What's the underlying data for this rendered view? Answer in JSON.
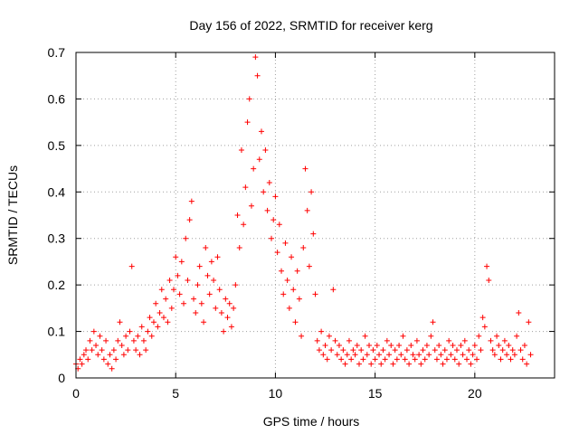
{
  "chart_data": {
    "type": "scatter",
    "title": "Day 156 of 2022, SRMTID for receiver kerg",
    "xlabel": "GPS time / hours",
    "ylabel": "SRMTID / TECUs",
    "xlim": [
      0,
      24
    ],
    "ylim": [
      0,
      0.7
    ],
    "xticks": [
      0,
      5,
      10,
      15,
      20
    ],
    "yticks": [
      0,
      0.1,
      0.2,
      0.3,
      0.4,
      0.5,
      0.6,
      0.7
    ],
    "xtick_labels": [
      "0",
      "5",
      "10",
      "15",
      "20"
    ],
    "ytick_labels": [
      "0",
      "0.1",
      "0.2",
      "0.3",
      "0.4",
      "0.5",
      "0.6",
      "0.7"
    ],
    "grid": true,
    "marker": "+",
    "color": "#ff0000",
    "series": [
      {
        "name": "SRMTID",
        "points": [
          [
            0.0,
            0.03
          ],
          [
            0.1,
            0.02
          ],
          [
            0.2,
            0.04
          ],
          [
            0.3,
            0.03
          ],
          [
            0.4,
            0.05
          ],
          [
            0.5,
            0.06
          ],
          [
            0.6,
            0.04
          ],
          [
            0.7,
            0.08
          ],
          [
            0.8,
            0.06
          ],
          [
            0.9,
            0.1
          ],
          [
            1.0,
            0.07
          ],
          [
            1.1,
            0.05
          ],
          [
            1.2,
            0.09
          ],
          [
            1.3,
            0.06
          ],
          [
            1.4,
            0.04
          ],
          [
            1.5,
            0.08
          ],
          [
            1.6,
            0.03
          ],
          [
            1.7,
            0.05
          ],
          [
            1.8,
            0.02
          ],
          [
            1.9,
            0.06
          ],
          [
            2.0,
            0.04
          ],
          [
            2.1,
            0.08
          ],
          [
            2.2,
            0.12
          ],
          [
            2.3,
            0.07
          ],
          [
            2.4,
            0.05
          ],
          [
            2.5,
            0.09
          ],
          [
            2.6,
            0.06
          ],
          [
            2.7,
            0.1
          ],
          [
            2.8,
            0.24
          ],
          [
            2.9,
            0.08
          ],
          [
            3.0,
            0.06
          ],
          [
            3.1,
            0.09
          ],
          [
            3.2,
            0.05
          ],
          [
            3.3,
            0.11
          ],
          [
            3.4,
            0.08
          ],
          [
            3.5,
            0.06
          ],
          [
            3.6,
            0.1
          ],
          [
            3.7,
            0.13
          ],
          [
            3.8,
            0.09
          ],
          [
            3.9,
            0.12
          ],
          [
            4.0,
            0.16
          ],
          [
            4.1,
            0.11
          ],
          [
            4.2,
            0.14
          ],
          [
            4.3,
            0.19
          ],
          [
            4.4,
            0.13
          ],
          [
            4.5,
            0.17
          ],
          [
            4.6,
            0.12
          ],
          [
            4.7,
            0.21
          ],
          [
            4.8,
            0.15
          ],
          [
            4.9,
            0.19
          ],
          [
            5.0,
            0.26
          ],
          [
            5.1,
            0.22
          ],
          [
            5.2,
            0.18
          ],
          [
            5.3,
            0.25
          ],
          [
            5.4,
            0.16
          ],
          [
            5.5,
            0.3
          ],
          [
            5.6,
            0.21
          ],
          [
            5.7,
            0.34
          ],
          [
            5.8,
            0.38
          ],
          [
            5.9,
            0.17
          ],
          [
            6.0,
            0.14
          ],
          [
            6.1,
            0.2
          ],
          [
            6.2,
            0.24
          ],
          [
            6.3,
            0.16
          ],
          [
            6.4,
            0.12
          ],
          [
            6.5,
            0.28
          ],
          [
            6.6,
            0.22
          ],
          [
            6.7,
            0.18
          ],
          [
            6.8,
            0.25
          ],
          [
            6.9,
            0.21
          ],
          [
            7.0,
            0.15
          ],
          [
            7.1,
            0.26
          ],
          [
            7.2,
            0.19
          ],
          [
            7.3,
            0.14
          ],
          [
            7.4,
            0.1
          ],
          [
            7.5,
            0.17
          ],
          [
            7.6,
            0.13
          ],
          [
            7.7,
            0.16
          ],
          [
            7.8,
            0.11
          ],
          [
            7.9,
            0.15
          ],
          [
            8.0,
            0.2
          ],
          [
            8.1,
            0.35
          ],
          [
            8.2,
            0.28
          ],
          [
            8.3,
            0.49
          ],
          [
            8.4,
            0.33
          ],
          [
            8.5,
            0.41
          ],
          [
            8.6,
            0.55
          ],
          [
            8.7,
            0.6
          ],
          [
            8.8,
            0.37
          ],
          [
            8.9,
            0.45
          ],
          [
            9.0,
            0.69
          ],
          [
            9.1,
            0.65
          ],
          [
            9.2,
            0.47
          ],
          [
            9.3,
            0.53
          ],
          [
            9.4,
            0.4
          ],
          [
            9.5,
            0.49
          ],
          [
            9.6,
            0.36
          ],
          [
            9.7,
            0.42
          ],
          [
            9.8,
            0.3
          ],
          [
            9.9,
            0.34
          ],
          [
            10.0,
            0.39
          ],
          [
            10.1,
            0.27
          ],
          [
            10.2,
            0.33
          ],
          [
            10.3,
            0.23
          ],
          [
            10.4,
            0.18
          ],
          [
            10.5,
            0.29
          ],
          [
            10.6,
            0.21
          ],
          [
            10.7,
            0.15
          ],
          [
            10.8,
            0.26
          ],
          [
            10.9,
            0.19
          ],
          [
            11.0,
            0.12
          ],
          [
            11.1,
            0.23
          ],
          [
            11.2,
            0.17
          ],
          [
            11.3,
            0.09
          ],
          [
            11.4,
            0.28
          ],
          [
            11.5,
            0.45
          ],
          [
            11.6,
            0.36
          ],
          [
            11.7,
            0.24
          ],
          [
            11.8,
            0.4
          ],
          [
            11.9,
            0.31
          ],
          [
            12.0,
            0.18
          ],
          [
            12.1,
            0.08
          ],
          [
            12.2,
            0.06
          ],
          [
            12.3,
            0.1
          ],
          [
            12.4,
            0.05
          ],
          [
            12.5,
            0.07
          ],
          [
            12.6,
            0.04
          ],
          [
            12.7,
            0.09
          ],
          [
            12.8,
            0.06
          ],
          [
            12.9,
            0.19
          ],
          [
            13.0,
            0.08
          ],
          [
            13.1,
            0.05
          ],
          [
            13.2,
            0.07
          ],
          [
            13.3,
            0.04
          ],
          [
            13.4,
            0.06
          ],
          [
            13.5,
            0.03
          ],
          [
            13.6,
            0.05
          ],
          [
            13.7,
            0.08
          ],
          [
            13.8,
            0.04
          ],
          [
            13.9,
            0.06
          ],
          [
            14.0,
            0.05
          ],
          [
            14.1,
            0.07
          ],
          [
            14.2,
            0.03
          ],
          [
            14.3,
            0.06
          ],
          [
            14.4,
            0.04
          ],
          [
            14.5,
            0.09
          ],
          [
            14.6,
            0.05
          ],
          [
            14.7,
            0.07
          ],
          [
            14.8,
            0.03
          ],
          [
            14.9,
            0.06
          ],
          [
            15.0,
            0.04
          ],
          [
            15.1,
            0.07
          ],
          [
            15.2,
            0.05
          ],
          [
            15.3,
            0.03
          ],
          [
            15.4,
            0.06
          ],
          [
            15.5,
            0.04
          ],
          [
            15.6,
            0.08
          ],
          [
            15.7,
            0.05
          ],
          [
            15.8,
            0.07
          ],
          [
            15.9,
            0.03
          ],
          [
            16.0,
            0.06
          ],
          [
            16.1,
            0.04
          ],
          [
            16.2,
            0.07
          ],
          [
            16.3,
            0.05
          ],
          [
            16.4,
            0.09
          ],
          [
            16.5,
            0.04
          ],
          [
            16.6,
            0.06
          ],
          [
            16.7,
            0.03
          ],
          [
            16.8,
            0.07
          ],
          [
            16.9,
            0.05
          ],
          [
            17.0,
            0.04
          ],
          [
            17.1,
            0.08
          ],
          [
            17.2,
            0.05
          ],
          [
            17.3,
            0.03
          ],
          [
            17.4,
            0.06
          ],
          [
            17.5,
            0.04
          ],
          [
            17.6,
            0.07
          ],
          [
            17.7,
            0.05
          ],
          [
            17.8,
            0.09
          ],
          [
            17.9,
            0.12
          ],
          [
            18.0,
            0.06
          ],
          [
            18.1,
            0.04
          ],
          [
            18.2,
            0.07
          ],
          [
            18.3,
            0.05
          ],
          [
            18.4,
            0.03
          ],
          [
            18.5,
            0.06
          ],
          [
            18.6,
            0.04
          ],
          [
            18.7,
            0.08
          ],
          [
            18.8,
            0.05
          ],
          [
            18.9,
            0.07
          ],
          [
            19.0,
            0.04
          ],
          [
            19.1,
            0.06
          ],
          [
            19.2,
            0.03
          ],
          [
            19.3,
            0.07
          ],
          [
            19.4,
            0.05
          ],
          [
            19.5,
            0.08
          ],
          [
            19.6,
            0.04
          ],
          [
            19.7,
            0.06
          ],
          [
            19.8,
            0.03
          ],
          [
            19.9,
            0.05
          ],
          [
            20.0,
            0.07
          ],
          [
            20.1,
            0.04
          ],
          [
            20.2,
            0.09
          ],
          [
            20.3,
            0.06
          ],
          [
            20.4,
            0.13
          ],
          [
            20.5,
            0.11
          ],
          [
            20.6,
            0.24
          ],
          [
            20.7,
            0.21
          ],
          [
            20.8,
            0.08
          ],
          [
            20.9,
            0.06
          ],
          [
            21.0,
            0.05
          ],
          [
            21.1,
            0.09
          ],
          [
            21.2,
            0.07
          ],
          [
            21.3,
            0.04
          ],
          [
            21.4,
            0.06
          ],
          [
            21.5,
            0.08
          ],
          [
            21.6,
            0.05
          ],
          [
            21.7,
            0.07
          ],
          [
            21.8,
            0.04
          ],
          [
            21.9,
            0.06
          ],
          [
            22.0,
            0.05
          ],
          [
            22.1,
            0.09
          ],
          [
            22.2,
            0.14
          ],
          [
            22.3,
            0.06
          ],
          [
            22.4,
            0.04
          ],
          [
            22.5,
            0.07
          ],
          [
            22.6,
            0.03
          ],
          [
            22.7,
            0.12
          ],
          [
            22.8,
            0.05
          ]
        ]
      }
    ]
  }
}
